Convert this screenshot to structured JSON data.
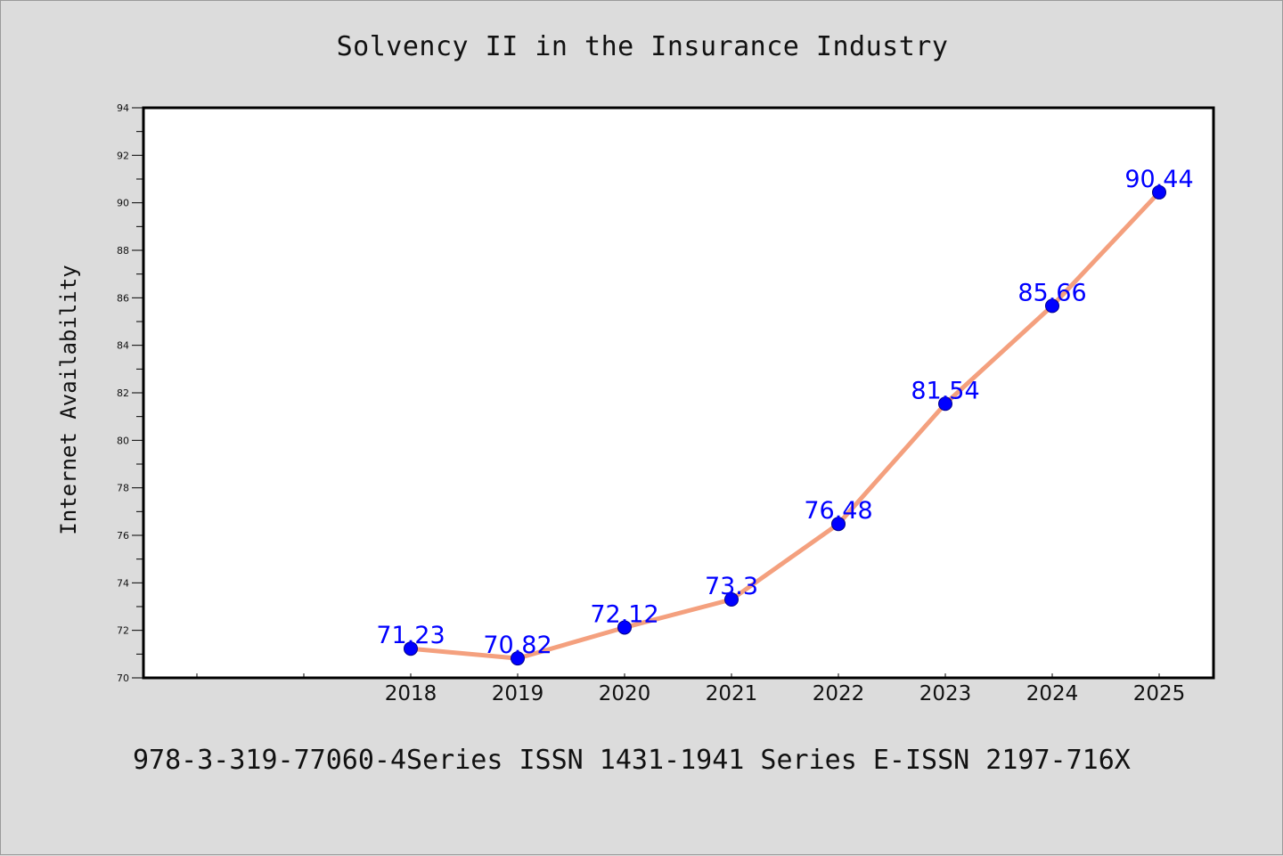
{
  "chart_data": {
    "type": "line",
    "title": "Solvency II in the Insurance Industry",
    "xlabel": "",
    "ylabel": "Internet Availability",
    "x": [
      "2018",
      "2019",
      "2020",
      "2021",
      "2022",
      "2023",
      "2024",
      "2025"
    ],
    "x_ticks_unlabeled_before": 2,
    "series": [
      {
        "values": [
          71.23,
          70.82,
          72.12,
          73.3,
          76.48,
          81.54,
          85.66,
          90.44
        ],
        "data_labels": [
          "71.23",
          "70.82",
          "72.12",
          "73.3",
          "76.48",
          "81.54",
          "85.66",
          "90.44"
        ],
        "line_color": "#f4a07e",
        "marker_color": "#0000ff"
      }
    ],
    "y_ticks": [
      "70",
      "72",
      "74",
      "76",
      "78",
      "80",
      "82",
      "84",
      "86",
      "88",
      "90",
      "92",
      "94"
    ],
    "ylim": [
      70,
      94
    ],
    "grid": false,
    "legend": "none"
  },
  "footer": {
    "text": "978-3-319-77060-4Series ISSN 1431-1941 Series E-ISSN 2197-716X"
  },
  "colors": {
    "background": "#dcdcdc",
    "plot_background": "#ffffff",
    "axis": "#000000"
  }
}
